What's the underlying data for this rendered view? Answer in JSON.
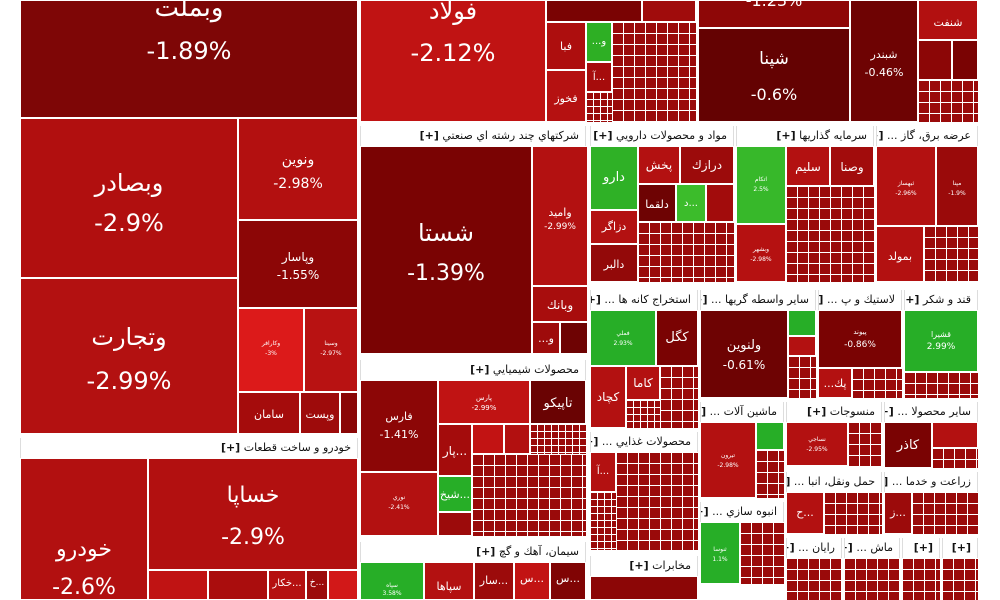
{
  "colors": {
    "deep": "#7a0303",
    "mid": "#a50d0d",
    "red": "#c21313",
    "bright": "#dd1a1a",
    "green": "#27ae27",
    "green2": "#3dbd2c"
  },
  "sections": {
    "multi_industry": "شرکتهاي چند رشته اي صنعتي",
    "pharma": "مواد و محصولات دارويي",
    "investment": "سرمايه گذاريها",
    "utilities": "عرضه برق، گاز ...",
    "chemical": "محصولات شيميايي",
    "auto": "خودرو و ساخت قطعات",
    "mining": "استخراج کانه ها ...",
    "financial_intermediaries": "ساير واسطه گريها ...",
    "plastic": "لاستيك و پ ...",
    "sugar": "قند و شكر",
    "machinery": "ماشين آلات ...",
    "textile": "منسوجات",
    "other_products": "ساير محصولا ...",
    "food": "محصولات غذايي ...",
    "mass_construction": "انبوه سازي ...",
    "transport": "حمل ونقل، انبا ...",
    "agriculture": "زراعت و خدما ...",
    "cement": "سيمان، آهك و گچ",
    "telecom": "مخابرات",
    "computer": "رايان ...",
    "machine2": "ماش ...",
    "plus": "[+]"
  },
  "tiles": {
    "vbmellat": {
      "symbol": "وبملت",
      "change": "-1.89%"
    },
    "foolad": {
      "symbol": "فولاد",
      "change": "-2.12%"
    },
    "top_right": {
      "symbol": "",
      "change": "-1.23%"
    },
    "shpna": {
      "symbol": "شپنا",
      "change": "-0.6%"
    },
    "shbandar": {
      "symbol": "شبندر",
      "change": "-0.46%"
    },
    "shanft": {
      "symbol": "شنفت",
      "change": ""
    },
    "fava": {
      "symbol": "فبا",
      "change": ""
    },
    "fakhooz": {
      "symbol": "فخوز",
      "change": ""
    },
    "sho": {
      "symbol": "...و",
      "change": ""
    },
    "aa": {
      "symbol": "آ...",
      "change": ""
    },
    "vbsader": {
      "symbol": "وبصادر",
      "change": "-2.9%"
    },
    "vnovin": {
      "symbol": "ونوين",
      "change": "-2.98%"
    },
    "vpasar": {
      "symbol": "وپاسار",
      "change": "-1.55%"
    },
    "vtejarat": {
      "symbol": "وتجارت",
      "change": "-2.99%"
    },
    "vkarafarin": {
      "symbol": "وكارافر",
      "change": "-3%"
    },
    "vpasin": {
      "symbol": "وسينا",
      "change": "-2.97%"
    },
    "saman": {
      "symbol": "سامان",
      "change": ""
    },
    "vpost": {
      "symbol": "وپست",
      "change": ""
    },
    "shasta": {
      "symbol": "شستا",
      "change": "-1.39%"
    },
    "vamid": {
      "symbol": "واميد",
      "change": "-2.99%"
    },
    "vbank": {
      "symbol": "وبانك",
      "change": ""
    },
    "vo": {
      "symbol": "...و",
      "change": ""
    },
    "darou": {
      "symbol": "دارو",
      "change": ""
    },
    "pakhsh": {
      "symbol": "پخش",
      "change": ""
    },
    "dorazak": {
      "symbol": "درازك",
      "change": ""
    },
    "dalqama": {
      "symbol": "دلقما",
      "change": ""
    },
    "dozagr": {
      "symbol": "دزاگر",
      "change": ""
    },
    "dalbar": {
      "symbol": "دالبر",
      "change": ""
    },
    "dd": {
      "symbol": "د...",
      "change": ""
    },
    "vsna": {
      "symbol": "وصنا",
      "change": ""
    },
    "slim": {
      "symbol": "سليم",
      "change": ""
    },
    "vg1": {
      "symbol": "اتكام",
      "change": "2.5%"
    },
    "vg2": {
      "symbol": "وبشهر",
      "change": "-2.98%"
    },
    "mapna": {
      "symbol": "مپنا",
      "change": "-1.9%"
    },
    "tmapna": {
      "symbol": "ثبهساز",
      "change": "-2.96%"
    },
    "bmould": {
      "symbol": "بمولد",
      "change": ""
    },
    "fars": {
      "symbol": "فارس",
      "change": "-1.41%"
    },
    "parsan": {
      "symbol": "پارس",
      "change": "-2.99%"
    },
    "tapico": {
      "symbol": "تاپيكو",
      "change": ""
    },
    "par": {
      "symbol": "پار...",
      "change": ""
    },
    "shikh": {
      "symbol": "شيخ...",
      "change": ""
    },
    "nouri": {
      "symbol": "نوري",
      "change": "-2.41%"
    },
    "khodro": {
      "symbol": "خودرو",
      "change": "-2.6%"
    },
    "khsapa": {
      "symbol": "خساپا",
      "change": "-2.9%"
    },
    "khkr": {
      "symbol": "خكار...",
      "change": ""
    },
    "khm": {
      "symbol": "خ...",
      "change": ""
    },
    "kgol": {
      "symbol": "كگل",
      "change": ""
    },
    "kama": {
      "symbol": "كاما",
      "change": ""
    },
    "kchad": {
      "symbol": "كچاد",
      "change": ""
    },
    "fmli": {
      "symbol": "فملي",
      "change": "2.93%"
    },
    "vlnovin": {
      "symbol": "ولنوين",
      "change": "-0.61%"
    },
    "ppeyvand": {
      "symbol": "پيوند",
      "change": "-0.86%"
    },
    "pk": {
      "symbol": "...پك",
      "change": ""
    },
    "qshira": {
      "symbol": "قشيرا",
      "change": "2.99%"
    },
    "ma1": {
      "symbol": "تيرون",
      "change": "-2.98%"
    },
    "nms": {
      "symbol": "نساجي",
      "change": "-2.95%"
    },
    "kazr": {
      "symbol": "كاذر",
      "change": ""
    },
    "sepah": {
      "symbol": "سپاه",
      "change": "3.58%"
    },
    "sbahan": {
      "symbol": "سپاها",
      "change": ""
    },
    "sar": {
      "symbol": "سار...",
      "change": ""
    },
    "sa": {
      "symbol": "س...",
      "change": ""
    },
    "sim": {
      "symbol": "س...",
      "change": ""
    },
    "sabz": {
      "symbol": "ثنوسا",
      "change": "1.1%"
    },
    "h": {
      "symbol": "ح...",
      "change": ""
    },
    "z": {
      "symbol": "ز...",
      "change": ""
    },
    "a_food": {
      "symbol": "آ...",
      "change": ""
    }
  }
}
